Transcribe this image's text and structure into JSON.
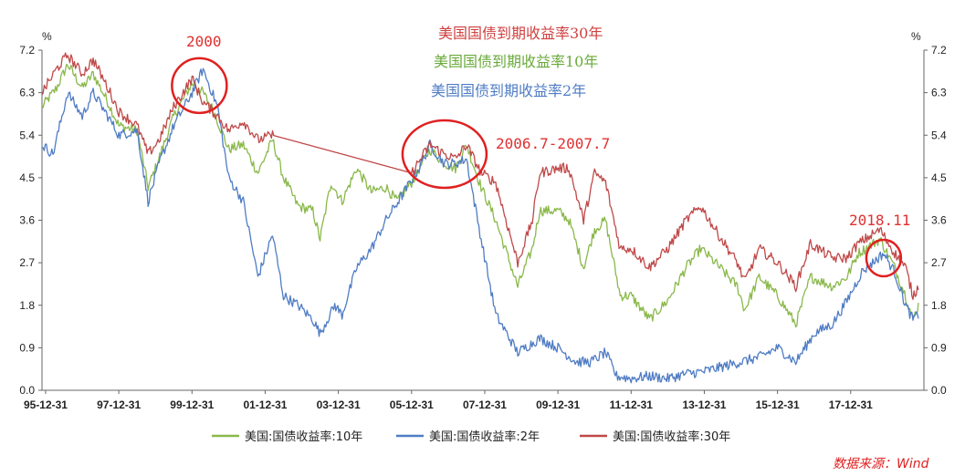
{
  "chart_data": {
    "type": "line",
    "unit_left": "%",
    "unit_right": "%",
    "y_ticks": [
      "0.0",
      "0.9",
      "1.8",
      "2.7",
      "3.6",
      "4.5",
      "5.4",
      "6.3",
      "7.2"
    ],
    "ylim": [
      0,
      7.2
    ],
    "x_ticks": [
      "95-12-31",
      "97-12-31",
      "99-12-31",
      "01-12-31",
      "03-12-31",
      "05-12-31",
      "07-12-31",
      "09-12-31",
      "11-12-31",
      "13-12-31",
      "15-12-31",
      "17-12-31"
    ],
    "xlim": [
      1995.9,
      2020.0
    ],
    "titles": [
      {
        "text": "美国国债到期收益率30年",
        "color": "#d04040"
      },
      {
        "text": "美国国债到期收益率10年",
        "color": "#6aaa3a"
      },
      {
        "text": "美国国债到期收益率2年",
        "color": "#4f7cc4"
      }
    ],
    "annotations": [
      {
        "text": "2000",
        "color": "#e03030"
      },
      {
        "text": "2006.7-2007.7",
        "color": "#e03030"
      },
      {
        "text": "2018.11",
        "color": "#e03030"
      }
    ],
    "circles": [
      {
        "year": 2000.2,
        "y": 6.45
      },
      {
        "year": 2006.9,
        "y": 5.0
      },
      {
        "year": 2018.9,
        "y": 2.8
      }
    ],
    "series": [
      {
        "name": "美国:国债收益率:10年",
        "color": "#8ab84a",
        "points": [
          [
            1995.9,
            6.0
          ],
          [
            1996.3,
            6.4
          ],
          [
            1996.6,
            6.9
          ],
          [
            1997.0,
            6.4
          ],
          [
            1997.3,
            6.7
          ],
          [
            1997.7,
            6.1
          ],
          [
            1998.0,
            5.6
          ],
          [
            1998.5,
            5.5
          ],
          [
            1998.8,
            4.3
          ],
          [
            1999.0,
            4.7
          ],
          [
            1999.5,
            5.8
          ],
          [
            2000.0,
            6.5
          ],
          [
            2000.3,
            6.3
          ],
          [
            2000.6,
            5.9
          ],
          [
            2001.0,
            5.1
          ],
          [
            2001.4,
            5.2
          ],
          [
            2001.8,
            4.6
          ],
          [
            2002.2,
            5.3
          ],
          [
            2002.5,
            4.5
          ],
          [
            2002.9,
            3.9
          ],
          [
            2003.3,
            3.8
          ],
          [
            2003.5,
            3.2
          ],
          [
            2003.8,
            4.4
          ],
          [
            2004.1,
            4.0
          ],
          [
            2004.5,
            4.7
          ],
          [
            2004.9,
            4.2
          ],
          [
            2005.3,
            4.3
          ],
          [
            2005.6,
            4.0
          ],
          [
            2006.0,
            4.4
          ],
          [
            2006.5,
            5.1
          ],
          [
            2006.9,
            4.8
          ],
          [
            2007.2,
            4.7
          ],
          [
            2007.5,
            5.2
          ],
          [
            2007.9,
            4.3
          ],
          [
            2008.3,
            3.6
          ],
          [
            2008.9,
            2.2
          ],
          [
            2009.3,
            3.0
          ],
          [
            2009.5,
            3.8
          ],
          [
            2010.0,
            3.8
          ],
          [
            2010.3,
            3.6
          ],
          [
            2010.7,
            2.6
          ],
          [
            2011.0,
            3.4
          ],
          [
            2011.3,
            3.6
          ],
          [
            2011.7,
            2.0
          ],
          [
            2012.0,
            2.0
          ],
          [
            2012.5,
            1.5
          ],
          [
            2013.0,
            1.9
          ],
          [
            2013.5,
            2.6
          ],
          [
            2013.9,
            3.0
          ],
          [
            2014.3,
            2.7
          ],
          [
            2014.9,
            2.2
          ],
          [
            2015.1,
            1.7
          ],
          [
            2015.5,
            2.4
          ],
          [
            2016.0,
            2.0
          ],
          [
            2016.5,
            1.4
          ],
          [
            2016.9,
            2.4
          ],
          [
            2017.5,
            2.2
          ],
          [
            2017.9,
            2.4
          ],
          [
            2018.2,
            2.9
          ],
          [
            2018.8,
            3.2
          ],
          [
            2019.2,
            2.6
          ],
          [
            2019.5,
            2.0
          ],
          [
            2019.7,
            1.5
          ],
          [
            2019.85,
            1.8
          ]
        ]
      },
      {
        "name": "美国:国债收益率:2年",
        "color": "#4f7cc4",
        "points": [
          [
            1995.9,
            5.2
          ],
          [
            1996.2,
            5.0
          ],
          [
            1996.6,
            6.3
          ],
          [
            1997.0,
            5.8
          ],
          [
            1997.3,
            6.3
          ],
          [
            1997.7,
            5.8
          ],
          [
            1998.0,
            5.4
          ],
          [
            1998.5,
            5.5
          ],
          [
            1998.8,
            4.0
          ],
          [
            1999.1,
            4.8
          ],
          [
            1999.5,
            5.6
          ],
          [
            2000.0,
            6.3
          ],
          [
            2000.3,
            6.8
          ],
          [
            2000.7,
            6.0
          ],
          [
            2001.0,
            4.5
          ],
          [
            2001.4,
            4.0
          ],
          [
            2001.8,
            2.4
          ],
          [
            2002.2,
            3.3
          ],
          [
            2002.5,
            2.0
          ],
          [
            2002.9,
            1.8
          ],
          [
            2003.3,
            1.5
          ],
          [
            2003.5,
            1.2
          ],
          [
            2003.9,
            1.8
          ],
          [
            2004.1,
            1.6
          ],
          [
            2004.5,
            2.6
          ],
          [
            2004.9,
            3.0
          ],
          [
            2005.3,
            3.6
          ],
          [
            2005.8,
            4.2
          ],
          [
            2006.2,
            4.7
          ],
          [
            2006.5,
            5.2
          ],
          [
            2006.9,
            4.8
          ],
          [
            2007.2,
            4.8
          ],
          [
            2007.5,
            4.9
          ],
          [
            2007.9,
            3.2
          ],
          [
            2008.3,
            1.6
          ],
          [
            2008.9,
            0.8
          ],
          [
            2009.5,
            1.1
          ],
          [
            2010.0,
            0.9
          ],
          [
            2010.5,
            0.6
          ],
          [
            2010.9,
            0.6
          ],
          [
            2011.3,
            0.8
          ],
          [
            2011.6,
            0.3
          ],
          [
            2012.0,
            0.25
          ],
          [
            2012.5,
            0.3
          ],
          [
            2013.0,
            0.25
          ],
          [
            2013.5,
            0.35
          ],
          [
            2014.0,
            0.4
          ],
          [
            2014.5,
            0.5
          ],
          [
            2015.0,
            0.6
          ],
          [
            2015.5,
            0.7
          ],
          [
            2016.0,
            0.9
          ],
          [
            2016.5,
            0.6
          ],
          [
            2017.0,
            1.2
          ],
          [
            2017.5,
            1.4
          ],
          [
            2017.9,
            1.9
          ],
          [
            2018.3,
            2.5
          ],
          [
            2018.9,
            2.9
          ],
          [
            2019.2,
            2.5
          ],
          [
            2019.5,
            1.8
          ],
          [
            2019.7,
            1.5
          ],
          [
            2019.85,
            1.6
          ]
        ]
      },
      {
        "name": "美国:国债收益率:30年",
        "color": "#c04848",
        "points": [
          [
            1995.9,
            6.3
          ],
          [
            1996.3,
            6.8
          ],
          [
            1996.6,
            7.1
          ],
          [
            1997.0,
            6.7
          ],
          [
            1997.3,
            7.0
          ],
          [
            1997.7,
            6.4
          ],
          [
            1998.0,
            5.9
          ],
          [
            1998.5,
            5.6
          ],
          [
            1998.8,
            5.0
          ],
          [
            1999.1,
            5.3
          ],
          [
            1999.5,
            6.0
          ],
          [
            2000.0,
            6.6
          ],
          [
            2000.3,
            6.1
          ],
          [
            2000.7,
            5.8
          ],
          [
            2001.0,
            5.5
          ],
          [
            2001.4,
            5.7
          ],
          [
            2001.8,
            5.3
          ],
          [
            2002.2,
            5.4
          ],
          [
            2006.0,
            4.6
          ],
          [
            2006.5,
            5.2
          ],
          [
            2006.9,
            5.0
          ],
          [
            2007.2,
            4.9
          ],
          [
            2007.5,
            5.2
          ],
          [
            2007.9,
            4.6
          ],
          [
            2008.3,
            4.4
          ],
          [
            2008.9,
            2.7
          ],
          [
            2009.3,
            3.6
          ],
          [
            2009.5,
            4.6
          ],
          [
            2010.0,
            4.7
          ],
          [
            2010.3,
            4.7
          ],
          [
            2010.7,
            3.6
          ],
          [
            2011.0,
            4.6
          ],
          [
            2011.3,
            4.4
          ],
          [
            2011.7,
            3.0
          ],
          [
            2012.0,
            3.0
          ],
          [
            2012.5,
            2.6
          ],
          [
            2013.0,
            3.0
          ],
          [
            2013.5,
            3.6
          ],
          [
            2013.9,
            3.9
          ],
          [
            2014.3,
            3.4
          ],
          [
            2014.9,
            2.7
          ],
          [
            2015.1,
            2.3
          ],
          [
            2015.5,
            3.0
          ],
          [
            2016.0,
            2.7
          ],
          [
            2016.5,
            2.2
          ],
          [
            2016.9,
            3.1
          ],
          [
            2017.5,
            2.8
          ],
          [
            2017.9,
            2.8
          ],
          [
            2018.2,
            3.1
          ],
          [
            2018.8,
            3.4
          ],
          [
            2019.2,
            2.9
          ],
          [
            2019.5,
            2.6
          ],
          [
            2019.7,
            2.0
          ],
          [
            2019.85,
            2.2
          ]
        ]
      }
    ],
    "legend": [
      "美国:国债收益率:10年",
      "美国:国债收益率:2年",
      "美国:国债收益率:30年"
    ],
    "legend_position": "bottom",
    "source_label": "数据来源：Wind",
    "grid": false
  }
}
